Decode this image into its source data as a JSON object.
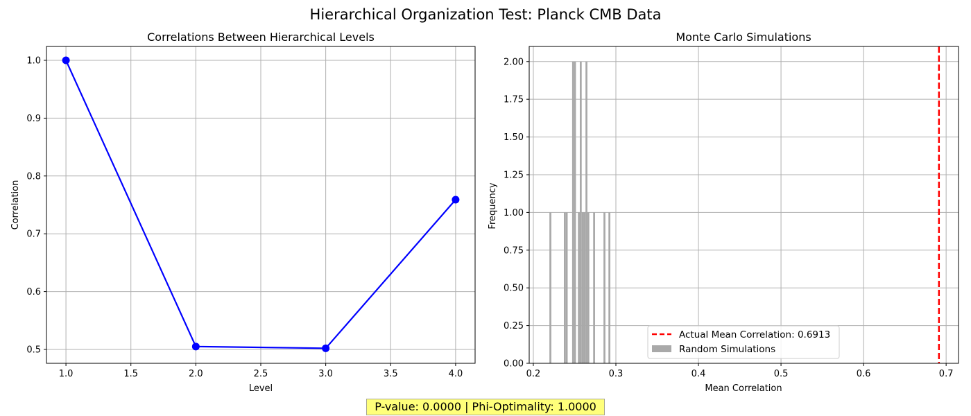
{
  "figure": {
    "suptitle": "Hierarchical Organization Test: Planck CMB Data",
    "footer": "P-value: 0.0000 | Phi-Optimality: 1.0000"
  },
  "chart_data": [
    {
      "type": "line",
      "title": "Correlations Between Hierarchical Levels",
      "xlabel": "Level",
      "ylabel": "Correlation",
      "xlim": [
        0.85,
        4.15
      ],
      "ylim": [
        0.476,
        1.024
      ],
      "xticks": [
        1.0,
        1.5,
        2.0,
        2.5,
        3.0,
        3.5,
        4.0
      ],
      "xtick_labels": [
        "1.0",
        "1.5",
        "2.0",
        "2.5",
        "3.0",
        "3.5",
        "4.0"
      ],
      "yticks": [
        0.5,
        0.6,
        0.7,
        0.8,
        0.9,
        1.0
      ],
      "ytick_labels": [
        "0.5",
        "0.6",
        "0.7",
        "0.8",
        "0.9",
        "1.0"
      ],
      "grid": true,
      "color": "#0000ff",
      "marker": "circle",
      "x": [
        1,
        2,
        3,
        4
      ],
      "y": [
        1.0,
        0.505,
        0.502,
        0.759
      ]
    },
    {
      "type": "bar",
      "subtype": "histogram",
      "title": "Monte Carlo Simulations",
      "xlabel": "Mean Correlation",
      "ylabel": "Frequency",
      "xlim": [
        0.195,
        0.715
      ],
      "ylim": [
        0,
        2.1
      ],
      "xticks": [
        0.2,
        0.3,
        0.4,
        0.5,
        0.6,
        0.7
      ],
      "xtick_labels": [
        "0.2",
        "0.3",
        "0.4",
        "0.5",
        "0.6",
        "0.7"
      ],
      "yticks": [
        0.0,
        0.25,
        0.5,
        0.75,
        1.0,
        1.25,
        1.5,
        1.75,
        2.0
      ],
      "ytick_labels": [
        "0.00",
        "0.25",
        "0.50",
        "0.75",
        "1.00",
        "1.25",
        "1.50",
        "1.75",
        "2.00"
      ],
      "grid": true,
      "legend_position": "lower-center",
      "bar_color": "#a9a9a9",
      "bars": [
        {
          "x0": 0.2195,
          "x1": 0.2218,
          "count": 1
        },
        {
          "x0": 0.237,
          "x1": 0.2393,
          "count": 1
        },
        {
          "x0": 0.2393,
          "x1": 0.2416,
          "count": 1
        },
        {
          "x0": 0.247,
          "x1": 0.2493,
          "count": 2
        },
        {
          "x0": 0.2493,
          "x1": 0.2516,
          "count": 2
        },
        {
          "x0": 0.254,
          "x1": 0.2563,
          "count": 1
        },
        {
          "x0": 0.2563,
          "x1": 0.2586,
          "count": 2
        },
        {
          "x0": 0.2586,
          "x1": 0.2609,
          "count": 1
        },
        {
          "x0": 0.2609,
          "x1": 0.2632,
          "count": 1
        },
        {
          "x0": 0.2632,
          "x1": 0.2655,
          "count": 2
        },
        {
          "x0": 0.2655,
          "x1": 0.2678,
          "count": 1
        },
        {
          "x0": 0.2725,
          "x1": 0.2748,
          "count": 1
        },
        {
          "x0": 0.285,
          "x1": 0.2873,
          "count": 1
        },
        {
          "x0": 0.291,
          "x1": 0.2933,
          "count": 1
        }
      ],
      "reference_line": {
        "x": 0.6913,
        "color": "#ff0000",
        "style": "dashed"
      },
      "legend": [
        {
          "label": "Actual Mean Correlation: 0.6913",
          "kind": "dashed-line",
          "color": "#ff0000"
        },
        {
          "label": "Random Simulations",
          "kind": "patch",
          "color": "#a9a9a9"
        }
      ]
    }
  ]
}
